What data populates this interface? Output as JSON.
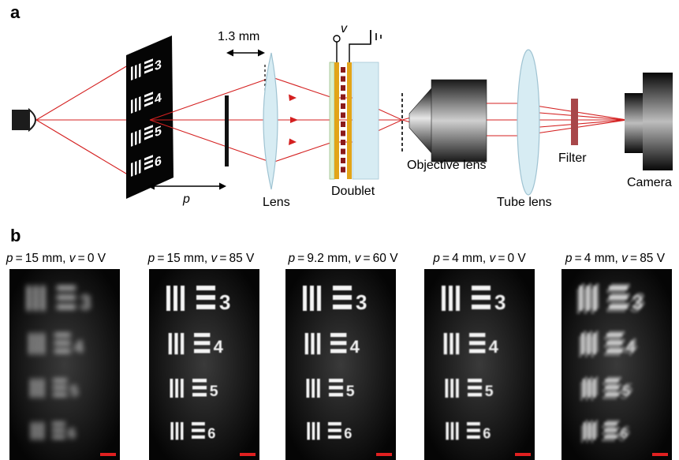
{
  "panel_a": {
    "label": "a",
    "dim_label": "1.3 mm",
    "voltage_symbol": "v",
    "distance_symbol": "p",
    "components": {
      "lens": "Lens",
      "doublet": "Doublet",
      "objective": "Objective lens",
      "tube": "Tube lens",
      "filter": "Filter",
      "camera": "Camera"
    },
    "target_digits": [
      "3",
      "4",
      "5",
      "6"
    ]
  },
  "panel_b": {
    "label": "b",
    "images": [
      {
        "p": "15 mm",
        "v": "0 V",
        "blur": "strong"
      },
      {
        "p": "15 mm",
        "v": "85 V",
        "blur": "none"
      },
      {
        "p": "9.2 mm",
        "v": "60 V",
        "blur": "none"
      },
      {
        "p": "4 mm",
        "v": "0 V",
        "blur": "slight"
      },
      {
        "p": "4 mm",
        "v": "85 V",
        "blur": "ghost"
      }
    ],
    "target_digits": [
      "3",
      "4",
      "5",
      "6"
    ]
  },
  "colors": {
    "ray": "#d42020",
    "lens_fill": "#d7ecf3",
    "lens_stroke": "#9fc3d2",
    "electrode": "#e2a418",
    "lc_stripe": "#8b1a1a",
    "filter": "#a8474a",
    "scale_bar": "#e02020"
  }
}
